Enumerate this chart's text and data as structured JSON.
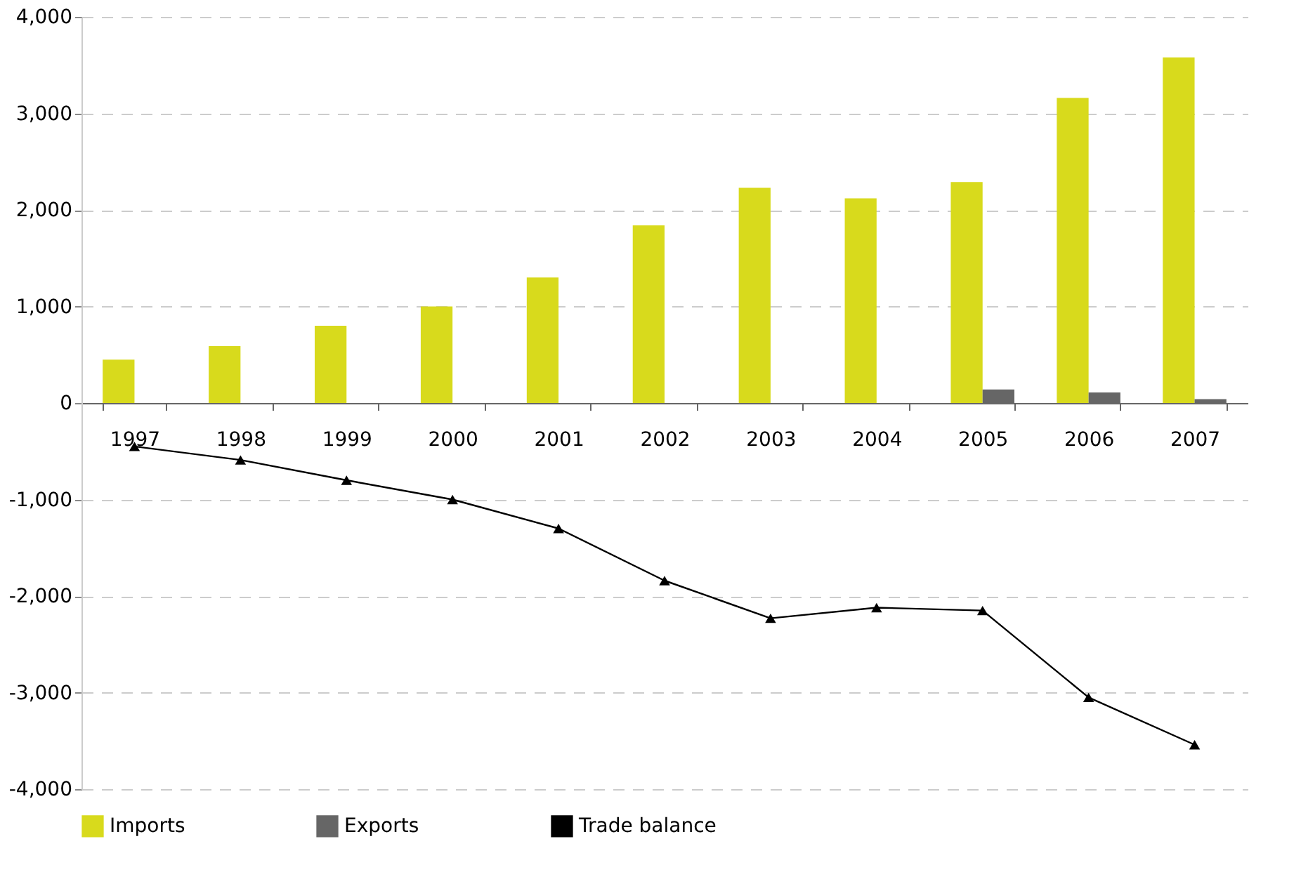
{
  "chart_data": {
    "type": "bar",
    "categories": [
      "1997",
      "1998",
      "1999",
      "2000",
      "2001",
      "2002",
      "2003",
      "2004",
      "2005",
      "2006",
      "2007"
    ],
    "series": [
      {
        "name": "Imports",
        "color": "#d8da1c",
        "values": [
          450,
          590,
          800,
          1000,
          1300,
          1840,
          2230,
          2120,
          2290,
          3160,
          3580
        ]
      },
      {
        "name": "Exports",
        "color": "#666666",
        "values": [
          0,
          0,
          0,
          0,
          0,
          0,
          0,
          0,
          140,
          110,
          40
        ]
      },
      {
        "name": "Trade balance",
        "type": "line",
        "color": "#000000",
        "marker": "triangle",
        "values": [
          -450,
          -590,
          -800,
          -1000,
          -1300,
          -1840,
          -2230,
          -2120,
          -2150,
          -3050,
          -3540
        ]
      }
    ],
    "ylim": [
      -4000,
      4000
    ],
    "yticks": [
      {
        "value": -4000,
        "label": "-4,000"
      },
      {
        "value": -3000,
        "label": "-3,000"
      },
      {
        "value": -2000,
        "label": "-2,000"
      },
      {
        "value": -1000,
        "label": "-1,000"
      },
      0,
      {
        "value": 1000,
        "label": "1,000"
      },
      {
        "value": 2000,
        "label": "2,000"
      },
      {
        "value": 3000,
        "label": "3,000"
      },
      {
        "value": 4000,
        "label": "4,000"
      }
    ],
    "grid": "y",
    "legend": "bottom"
  }
}
